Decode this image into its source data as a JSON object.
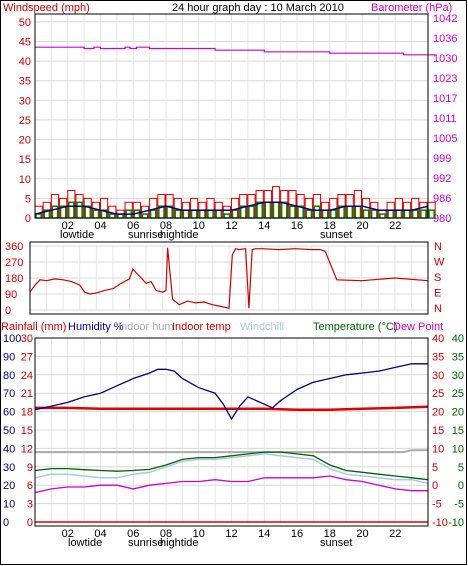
{
  "chart_data": [
    {
      "type": "line",
      "title": "24 hour graph day : 10 March 2010",
      "left_axis_label": "Windspeed (mph)",
      "right_axis_label": "Barometer (hPa)",
      "left_ticks": [
        0,
        5,
        10,
        15,
        20,
        25,
        30,
        35,
        40,
        45,
        50
      ],
      "right_ticks": [
        980,
        986,
        992,
        999,
        1005,
        1011,
        1017,
        1023,
        1030,
        1036,
        1042
      ],
      "ylim_left": [
        0,
        52
      ],
      "ylim_right": [
        980,
        1042
      ],
      "x_ticks": [
        "02",
        "04",
        "06",
        "08",
        "10",
        "12",
        "14",
        "16",
        "18",
        "20",
        "22"
      ],
      "events": [
        "lowtide",
        "sunrise",
        "hightide",
        "sunset"
      ],
      "colors": {
        "gust": "#e00000",
        "avg": "#008000",
        "direction_dark": "#000080",
        "barometer": "#cc00cc"
      },
      "series": [
        {
          "name": "barometer",
          "x": [
            0.0,
            2.6,
            3.0,
            3.6,
            4.0,
            5.5,
            5.8,
            6.2,
            7.0,
            11.0,
            14.0,
            18.0,
            22.0,
            22.5,
            24.5
          ],
          "values": [
            1031.9,
            1031.9,
            1031.5,
            1031.9,
            1031.5,
            1031.9,
            1031.5,
            1031.9,
            1031.5,
            1031.0,
            1030.5,
            1030.1,
            1030.1,
            1029.6,
            1029.6
          ]
        },
        {
          "name": "gust",
          "x": [
            0.0,
            0.5,
            1.0,
            1.5,
            2.0,
            2.5,
            3.0,
            3.5,
            4.0,
            4.5,
            5.0,
            5.5,
            6.0,
            6.5,
            7.0,
            7.5,
            8.0,
            8.5,
            9.0,
            9.5,
            10.0,
            10.5,
            11.0,
            11.5,
            12.0,
            12.5,
            13.0,
            13.5,
            14.0,
            14.5,
            15.0,
            15.5,
            16.0,
            16.5,
            17.0,
            17.5,
            18.0,
            18.5,
            19.0,
            19.5,
            20.0,
            20.5,
            21.0,
            21.5,
            22.0,
            22.5,
            23.0,
            23.5,
            24.0
          ],
          "values": [
            3,
            4,
            6,
            5,
            7,
            6,
            5,
            4,
            5,
            3,
            2,
            4,
            4,
            3,
            5,
            6,
            6,
            5,
            4,
            5,
            4,
            5,
            4,
            3,
            5,
            6,
            6,
            7,
            7,
            8,
            7,
            7,
            6,
            5,
            6,
            4,
            5,
            6,
            6,
            7,
            5,
            4,
            2,
            4,
            5,
            4,
            5,
            4,
            4
          ]
        },
        {
          "name": "avg",
          "x": [
            0.0,
            0.5,
            1.0,
            1.5,
            2.0,
            2.5,
            3.0,
            3.5,
            4.0,
            4.5,
            5.0,
            5.5,
            6.0,
            6.5,
            7.0,
            7.5,
            8.0,
            8.5,
            9.0,
            9.5,
            10.0,
            10.5,
            11.0,
            11.5,
            12.0,
            12.5,
            13.0,
            13.5,
            14.0,
            14.5,
            15.0,
            15.5,
            16.0,
            16.5,
            17.0,
            17.5,
            18.0,
            18.5,
            19.0,
            19.5,
            20.0,
            20.5,
            21.0,
            21.5,
            22.0,
            22.5,
            23.0,
            23.5,
            24.0
          ],
          "values": [
            1,
            2,
            3,
            3,
            4,
            4,
            3,
            2,
            2,
            1,
            1,
            2,
            2,
            1,
            2,
            3,
            3,
            2,
            2,
            2,
            2,
            2,
            2,
            1,
            2,
            3,
            3,
            4,
            4,
            4,
            4,
            3,
            3,
            2,
            3,
            2,
            2,
            3,
            3,
            3,
            2,
            2,
            1,
            2,
            2,
            2,
            2,
            2,
            2
          ]
        },
        {
          "name": "windchill_line",
          "x": [
            0.0,
            1.0,
            2.0,
            3.0,
            4.0,
            5.0,
            6.0,
            7.0,
            8.0,
            9.0,
            10.0,
            11.0,
            12.0,
            13.0,
            14.0,
            15.0,
            16.0,
            17.0,
            18.0,
            19.0,
            20.0,
            21.0,
            22.0,
            23.0,
            24.0
          ],
          "values": [
            1,
            2,
            3,
            3,
            2,
            1,
            1,
            2,
            3,
            2,
            2,
            2,
            2,
            3,
            4,
            4,
            3,
            2,
            2,
            3,
            3,
            2,
            2,
            2,
            3
          ]
        }
      ]
    },
    {
      "type": "scatter",
      "left_ticks": [
        0,
        90,
        180,
        270,
        360
      ],
      "right_ticks": [
        "N",
        "W",
        "S",
        "E",
        "N"
      ],
      "ylim": [
        0,
        360
      ],
      "color": "#cc0000",
      "series": [
        {
          "name": "wind_direction",
          "x": [
            0.0,
            0.3,
            0.6,
            1.0,
            1.5,
            2.0,
            2.5,
            3.0,
            3.3,
            3.6,
            4.0,
            4.5,
            5.0,
            5.5,
            6.0,
            6.2,
            6.5,
            7.0,
            7.3,
            7.6,
            8.0,
            8.2,
            8.3,
            8.6,
            9.0,
            9.5,
            10.0,
            10.5,
            11.0,
            11.5,
            12.0,
            12.2,
            12.4,
            12.6,
            13.0,
            13.2,
            13.4,
            13.6,
            14.0,
            15.0,
            16.0,
            17.0,
            17.5,
            17.8,
            18.5,
            20.0,
            22.0,
            24.0
          ],
          "values": [
            100,
            140,
            170,
            165,
            175,
            170,
            160,
            140,
            100,
            90,
            95,
            110,
            120,
            150,
            175,
            230,
            200,
            150,
            160,
            110,
            100,
            110,
            350,
            60,
            30,
            50,
            40,
            45,
            30,
            20,
            10,
            310,
            345,
            340,
            345,
            10,
            340,
            345,
            345,
            340,
            345,
            340,
            340,
            330,
            170,
            165,
            180,
            165
          ]
        }
      ]
    },
    {
      "type": "line",
      "legend": [
        "Rainfall (mm)",
        "Humidity %",
        "Indoor hum",
        "Indoor temp",
        "Windchill",
        "Temperature (°C)",
        "Dew Point"
      ],
      "left_ticks_rain": [
        0,
        3,
        6,
        9,
        12,
        15,
        18,
        21,
        24,
        27,
        30
      ],
      "left_ticks_humidity": [
        0,
        10,
        20,
        30,
        40,
        50,
        60,
        70,
        80,
        90,
        100
      ],
      "right_ticks_temp": [
        -10,
        -5,
        0,
        5,
        10,
        15,
        20,
        25,
        30,
        35,
        40
      ],
      "right_ticks_dew": [
        -10,
        -5,
        0,
        5,
        10,
        15,
        20,
        25,
        30,
        35,
        40
      ],
      "ylim_temp": [
        -10,
        40
      ],
      "colors": {
        "rain": "#e00000",
        "humidity": "#000080",
        "indoor_hum": "#aaaaaa",
        "indoor_temp": "#e00000",
        "windchill": "#a8c8e8",
        "temperature": "#006400",
        "dew": "#cc00cc"
      },
      "series": [
        {
          "name": "Humidity %",
          "x": [
            0,
            1,
            2,
            3,
            4,
            5,
            6,
            7,
            7.5,
            8,
            8.5,
            9,
            10,
            11,
            11.5,
            12,
            12.5,
            13,
            14,
            14.5,
            15,
            16,
            17,
            18,
            19,
            20,
            21,
            22,
            23,
            24
          ],
          "values": [
            61,
            63,
            65,
            68,
            70,
            74,
            78,
            81,
            83,
            83,
            82,
            78,
            73,
            70,
            64,
            56,
            63,
            68,
            64,
            62,
            66,
            72,
            76,
            78,
            80,
            81,
            82,
            84,
            86,
            86
          ]
        },
        {
          "name": "Indoor hum",
          "x": [
            0,
            4,
            8,
            12,
            16,
            20,
            22.5,
            23,
            24
          ],
          "values": [
            38,
            38,
            38,
            38,
            38,
            38,
            38,
            39,
            39
          ]
        },
        {
          "name": "Indoor temp",
          "x": [
            0,
            2,
            4,
            6,
            8,
            10,
            12,
            14,
            16,
            18,
            20,
            22,
            24
          ],
          "values": [
            21.0,
            21.0,
            20.8,
            20.8,
            20.8,
            20.8,
            20.8,
            20.8,
            20.5,
            20.5,
            20.8,
            21.0,
            21.3
          ]
        },
        {
          "name": "Temperature (°C)",
          "x": [
            0,
            1,
            2,
            3,
            4,
            5,
            6,
            7,
            8,
            9,
            10,
            11,
            12,
            13,
            14,
            15,
            16,
            17,
            18,
            19,
            20,
            21,
            22,
            23,
            24
          ],
          "values": [
            4,
            4.5,
            4.5,
            4.2,
            4,
            3.8,
            4,
            4.3,
            5.5,
            7,
            7.5,
            7.5,
            8,
            8.5,
            9,
            9,
            8.5,
            8,
            5.5,
            4,
            3.5,
            3,
            2.5,
            2,
            1.5
          ]
        },
        {
          "name": "Windchill",
          "x": [
            0,
            1,
            2,
            3,
            4,
            5,
            6,
            7,
            8,
            9,
            10,
            11,
            12,
            13,
            14,
            15,
            16,
            17,
            18,
            19,
            20,
            21,
            22,
            23,
            24
          ],
          "values": [
            2,
            3,
            3,
            2.5,
            2,
            2,
            3,
            3.5,
            5,
            6.5,
            7,
            7,
            7.5,
            8,
            8.5,
            8,
            7.5,
            7,
            4.5,
            3,
            2.5,
            2,
            1.5,
            1.5,
            0.5
          ]
        },
        {
          "name": "Dew Point",
          "x": [
            0,
            1,
            2,
            3,
            4,
            5,
            6,
            7,
            8,
            9,
            10,
            11,
            12,
            13,
            14,
            15,
            16,
            17,
            18,
            19,
            20,
            21,
            22,
            23,
            24
          ],
          "values": [
            -2,
            -1,
            -0.5,
            -0.5,
            0,
            0,
            -1,
            0,
            0.5,
            1,
            1,
            1.5,
            1,
            1,
            2,
            2,
            2,
            2,
            2.5,
            1.5,
            1,
            0,
            -1,
            -1.5,
            -1.5
          ]
        },
        {
          "name": "Rainfall (mm)",
          "x": [
            0,
            24
          ],
          "values": [
            0,
            0
          ]
        }
      ]
    }
  ]
}
